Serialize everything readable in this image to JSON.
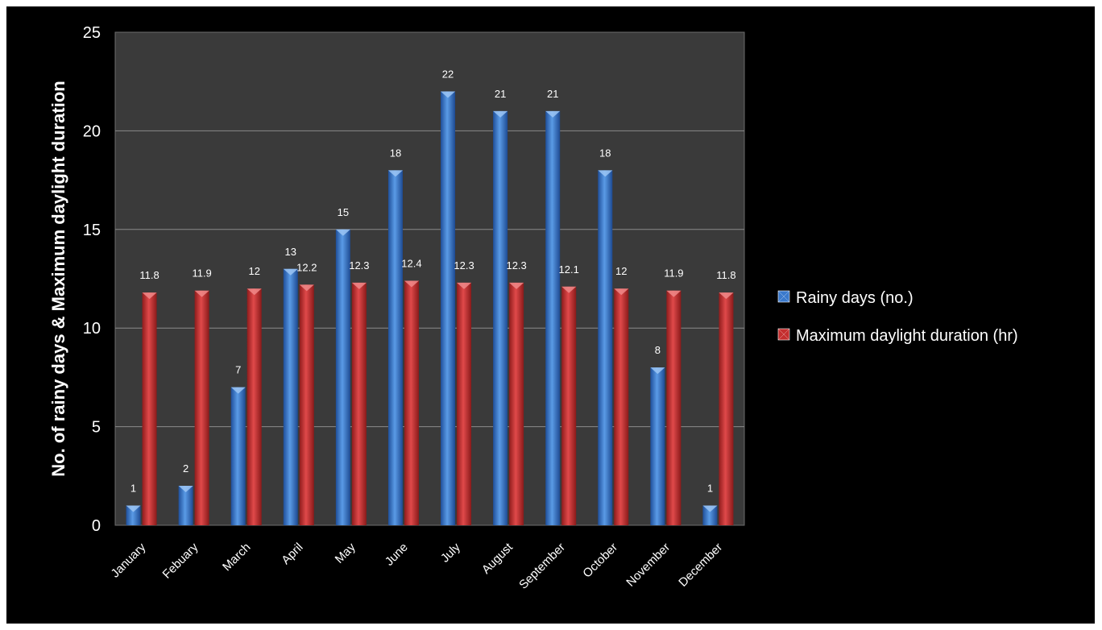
{
  "chart_data": {
    "type": "bar",
    "title": "",
    "ylabel": "No. of rainy days & Maximum daylight duration",
    "xlabel": "",
    "ylim": [
      0,
      25
    ],
    "yticks": [
      0,
      5,
      10,
      15,
      20,
      25
    ],
    "grid": true,
    "legend_position": "right",
    "categories": [
      "January",
      "Febuary",
      "March",
      "April",
      "May",
      "June",
      "July",
      "August",
      "September",
      "October",
      "November",
      "December"
    ],
    "series": [
      {
        "name": "Rainy days (no.)",
        "color": "#3a79cc",
        "values": [
          1,
          2,
          7,
          13,
          15,
          18,
          22,
          21,
          21,
          18,
          8,
          1
        ]
      },
      {
        "name": "Maximum daylight duration (hr)",
        "color": "#c42f2f",
        "values": [
          11.8,
          11.9,
          12,
          12.2,
          12.3,
          12.4,
          12.3,
          12.3,
          12.1,
          12,
          11.9,
          11.8
        ]
      }
    ],
    "plot_background": "#3a3a3a",
    "page_background": "#000000"
  }
}
